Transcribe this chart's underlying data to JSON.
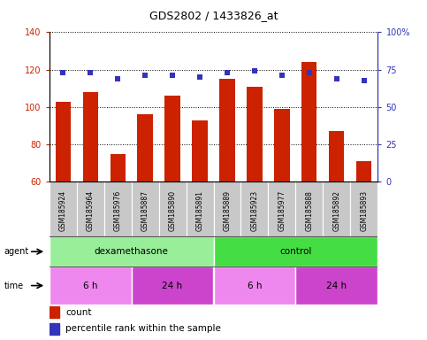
{
  "title": "GDS2802 / 1433826_at",
  "samples": [
    "GSM185924",
    "GSM185964",
    "GSM185976",
    "GSM185887",
    "GSM185890",
    "GSM185891",
    "GSM185889",
    "GSM185923",
    "GSM185977",
    "GSM185888",
    "GSM185892",
    "GSM185893"
  ],
  "counts": [
    103,
    108,
    75,
    96,
    106,
    93,
    115,
    111,
    99,
    124,
    87,
    71
  ],
  "percentiles": [
    73,
    73,
    69,
    71,
    71,
    70,
    73,
    74,
    71,
    73,
    69,
    68
  ],
  "ylim_left": [
    60,
    140
  ],
  "ylim_right": [
    0,
    100
  ],
  "yticks_left": [
    60,
    80,
    100,
    120,
    140
  ],
  "yticks_right": [
    0,
    25,
    50,
    75,
    100
  ],
  "bar_color": "#CC2200",
  "dot_color": "#3333BB",
  "agent_groups": [
    {
      "label": "dexamethasone",
      "start": 0,
      "end": 6,
      "color": "#99EE99"
    },
    {
      "label": "control",
      "start": 6,
      "end": 12,
      "color": "#44DD44"
    }
  ],
  "time_groups": [
    {
      "label": "6 h",
      "start": 0,
      "end": 3,
      "color": "#EE88EE"
    },
    {
      "label": "24 h",
      "start": 3,
      "end": 6,
      "color": "#CC44CC"
    },
    {
      "label": "6 h",
      "start": 6,
      "end": 9,
      "color": "#EE88EE"
    },
    {
      "label": "24 h",
      "start": 9,
      "end": 12,
      "color": "#CC44CC"
    }
  ],
  "tick_bg_color": "#C8C8C8",
  "legend_count_label": "count",
  "legend_pct_label": "percentile rank within the sample"
}
